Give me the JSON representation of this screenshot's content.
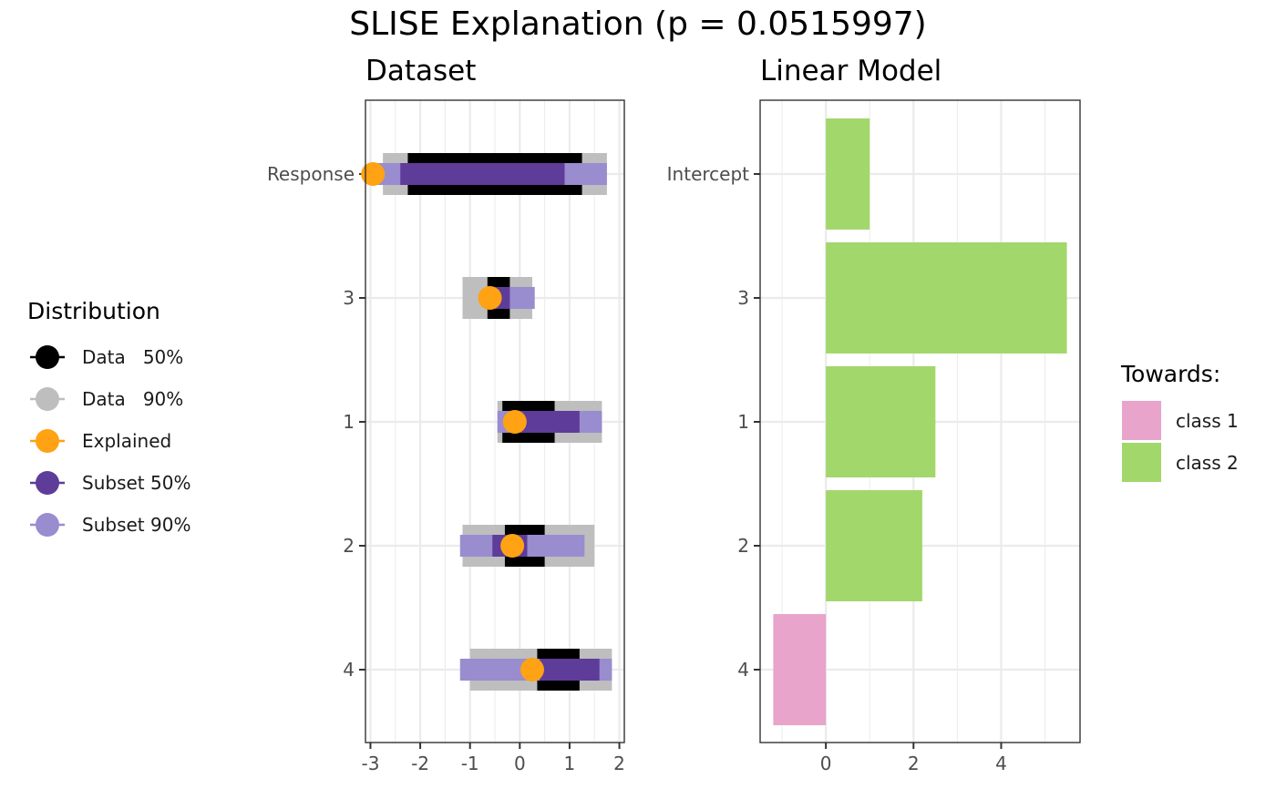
{
  "title": "SLISE Explanation (p = 0.0515997)",
  "colors": {
    "data50": "#000000",
    "data90": "#bebebe",
    "explained": "#ffa213",
    "subset50": "#5e3c99",
    "subset90": "#998ccf",
    "class1": "#e8a4cb",
    "class2": "#a2d76b"
  },
  "chart_data": [
    {
      "type": "bar",
      "panel": "dataset",
      "title": "Dataset",
      "categories": [
        "Response",
        "3",
        "1",
        "2",
        "4"
      ],
      "xlim": [
        -3.1,
        2.1
      ],
      "xticks": [
        -3,
        -2,
        -1,
        0,
        1,
        2
      ],
      "x_minor_gridlines": [
        -2.5,
        -1.5,
        -0.5,
        0.5,
        1.5
      ],
      "grid": true,
      "series": [
        {
          "name": "Data   90%",
          "ranges": [
            [
              -2.75,
              1.75
            ],
            [
              -1.15,
              0.25
            ],
            [
              -0.45,
              1.65
            ],
            [
              -1.15,
              1.5
            ],
            [
              -1.0,
              1.85
            ]
          ]
        },
        {
          "name": "Data   50%",
          "ranges": [
            [
              -2.25,
              1.25
            ],
            [
              -0.65,
              -0.2
            ],
            [
              -0.35,
              0.7
            ],
            [
              -0.3,
              0.5
            ],
            [
              0.35,
              1.2
            ]
          ]
        },
        {
          "name": "Subset 90%",
          "ranges": [
            [
              -2.9,
              1.75
            ],
            [
              -0.55,
              0.3
            ],
            [
              -0.45,
              1.65
            ],
            [
              -1.2,
              1.3
            ],
            [
              -1.2,
              1.85
            ]
          ]
        },
        {
          "name": "Subset 50%",
          "ranges": [
            [
              -2.4,
              0.9
            ],
            [
              -0.55,
              -0.2
            ],
            [
              -0.2,
              1.2
            ],
            [
              -0.55,
              0.15
            ],
            [
              0.4,
              1.6
            ]
          ]
        },
        {
          "name": "Explained",
          "values": [
            -2.95,
            -0.6,
            -0.1,
            -0.15,
            0.25
          ]
        }
      ],
      "legend": {
        "title": "Distribution",
        "position": "left",
        "items": [
          "Data   50%",
          "Data   90%",
          "Explained",
          "Subset 50%",
          "Subset 90%"
        ]
      }
    },
    {
      "type": "bar",
      "panel": "linear-model",
      "title": "Linear Model",
      "orientation": "horizontal",
      "categories": [
        "Intercept",
        "3",
        "1",
        "2",
        "4"
      ],
      "values": [
        1.0,
        5.5,
        2.5,
        2.2,
        -1.2
      ],
      "towards": [
        "class 2",
        "class 2",
        "class 2",
        "class 2",
        "class 1"
      ],
      "xlim": [
        -1.5,
        5.8
      ],
      "xticks": [
        0,
        2,
        4
      ],
      "x_minor_gridlines": [
        -1,
        1,
        3,
        5
      ],
      "grid": true,
      "legend": {
        "title": "Towards:",
        "position": "right",
        "items": [
          "class 1",
          "class 2"
        ]
      }
    }
  ]
}
